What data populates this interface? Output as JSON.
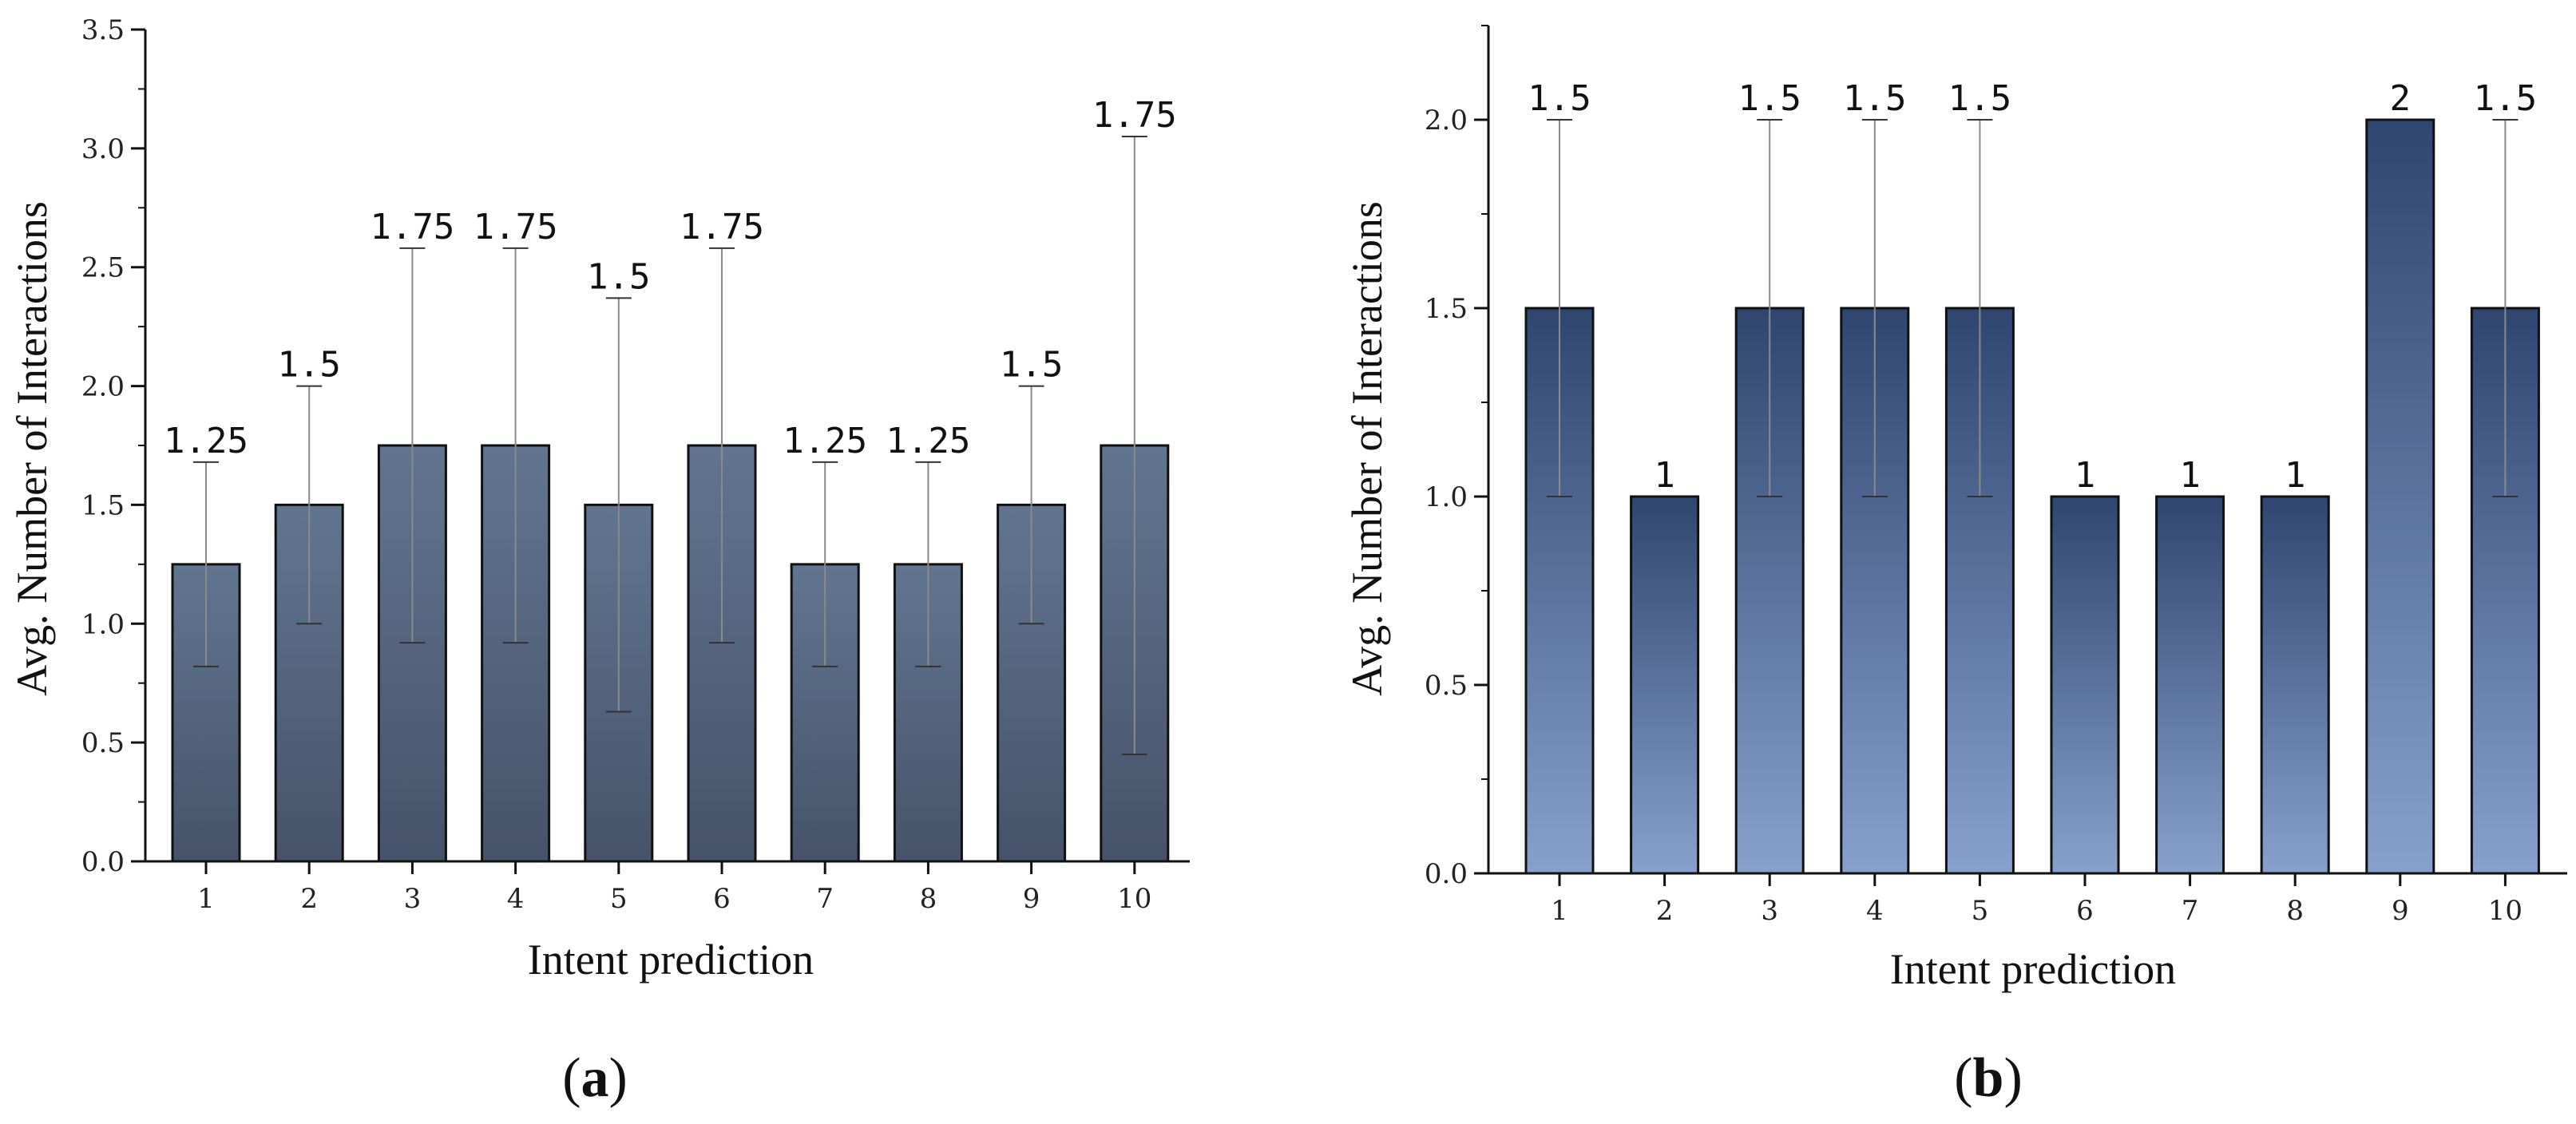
{
  "chart_data": [
    {
      "type": "bar",
      "panel_label": "(a)",
      "panel_letter": "a",
      "xlabel": "Intent prediction",
      "ylabel": "Avg. Number of Interactions",
      "ylim": [
        0,
        3.5
      ],
      "yticks": [
        "0.0",
        "0.5",
        "1.0",
        "1.5",
        "2.0",
        "2.5",
        "3.0",
        "3.5"
      ],
      "categories": [
        "1",
        "2",
        "3",
        "4",
        "5",
        "6",
        "7",
        "8",
        "9",
        "10"
      ],
      "values": [
        1.25,
        1.5,
        1.75,
        1.75,
        1.5,
        1.75,
        1.25,
        1.25,
        1.5,
        1.75
      ],
      "value_labels": [
        "1.25",
        "1.5",
        "1.75",
        "1.75",
        "1.5",
        "1.75",
        "1.25",
        "1.25",
        "1.5",
        "1.75"
      ],
      "error_low": [
        0.82,
        1.0,
        0.92,
        0.92,
        0.63,
        0.92,
        0.82,
        0.82,
        1.0,
        0.45
      ],
      "error_high": [
        1.68,
        2.0,
        2.58,
        2.58,
        2.37,
        2.58,
        1.68,
        1.68,
        2.0,
        3.05
      ],
      "bar_color_top": "#627590",
      "bar_color_bottom": "#46536a"
    },
    {
      "type": "bar",
      "panel_label": "(b)",
      "panel_letter": "b",
      "xlabel": "Intent prediction",
      "ylabel": "Avg. Number of Interactions",
      "ylim": [
        0,
        2.25
      ],
      "yticks": [
        "0.0",
        "0.5",
        "1.0",
        "1.5",
        "2.0"
      ],
      "categories": [
        "1",
        "2",
        "3",
        "4",
        "5",
        "6",
        "7",
        "8",
        "9",
        "10"
      ],
      "values": [
        1.5,
        1.0,
        1.5,
        1.5,
        1.5,
        1.0,
        1.0,
        1.0,
        2.0,
        1.5
      ],
      "value_labels": [
        "1.5",
        "1",
        "1.5",
        "1.5",
        "1.5",
        "1",
        "1",
        "1",
        "2",
        "1.5"
      ],
      "error_low": [
        1.0,
        null,
        1.0,
        1.0,
        1.0,
        null,
        null,
        null,
        null,
        1.0
      ],
      "error_high": [
        2.0,
        null,
        2.0,
        2.0,
        2.0,
        null,
        null,
        null,
        null,
        2.0
      ],
      "bar_color_top": "#2f4670",
      "bar_color_bottom": "#87a0cc"
    }
  ]
}
